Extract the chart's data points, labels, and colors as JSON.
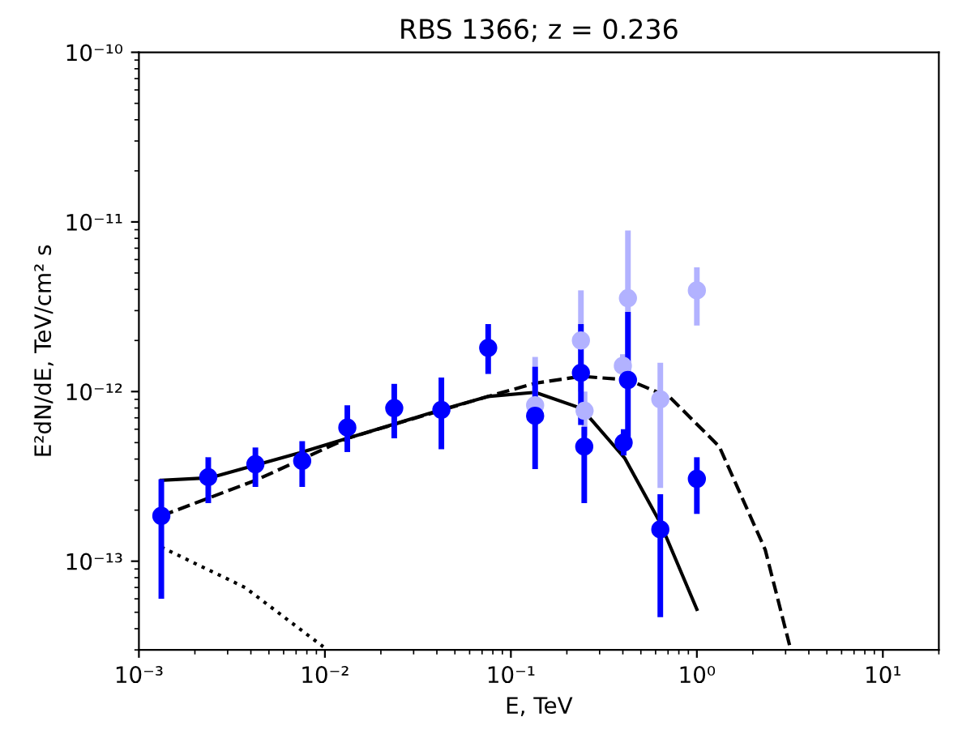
{
  "chart_data": {
    "type": "scatter",
    "title": "RBS 1366; z = 0.236",
    "xlabel": "E, TeV",
    "ylabel": "E²dN/dE, TeV/cm² s",
    "log": "xy",
    "xlim": [
      0.001,
      20
    ],
    "ylim": [
      3e-14,
      1e-10
    ],
    "xticks": [
      {
        "value": 0.001,
        "label": "10⁻³"
      },
      {
        "value": 0.01,
        "label": "10⁻²"
      },
      {
        "value": 0.1,
        "label": "10⁻¹"
      },
      {
        "value": 1,
        "label": "10⁰"
      },
      {
        "value": 10,
        "label": "10¹"
      }
    ],
    "yticks": [
      {
        "value": 1e-13,
        "label": "10⁻¹³"
      },
      {
        "value": 1e-12,
        "label": "10⁻¹²"
      },
      {
        "value": 1e-11,
        "label": "10⁻¹¹"
      },
      {
        "value": 1e-10,
        "label": "10⁻¹⁰"
      }
    ],
    "grid": false,
    "series": [
      {
        "type": "line",
        "color": "#000000",
        "line_style": "solid",
        "marker": "none",
        "x": [
          0.00132,
          0.00241,
          0.0073,
          0.0132,
          0.042,
          0.075,
          0.135,
          0.24,
          0.41,
          0.636,
          1.0
        ],
        "values": [
          3e-13,
          3.1e-13,
          4.35e-13,
          5.3e-13,
          7.8e-13,
          9.35e-13,
          9.9e-13,
          7.95e-13,
          4.04e-13,
          1.68e-13,
          5.2e-14
        ]
      },
      {
        "type": "line",
        "color": "#000000",
        "line_style": "dashed",
        "marker": "none",
        "x": [
          0.00132,
          0.00425,
          0.0132,
          0.075,
          0.135,
          0.24,
          0.43,
          0.72,
          1.32,
          2.33,
          3.15
        ],
        "values": [
          1.85e-13,
          3e-13,
          5.3e-13,
          9.35e-13,
          1.12e-12,
          1.23e-12,
          1.17e-12,
          9.2e-13,
          4.74e-13,
          1.17e-13,
          3.2e-14
        ]
      },
      {
        "type": "line",
        "color": "#000000",
        "line_style": "dotted",
        "marker": "none",
        "x": [
          0.00132,
          0.00372,
          0.0098
        ],
        "values": [
          1.21e-13,
          7e-14,
          3.13e-14
        ]
      },
      {
        "color": "#b2b2ff",
        "marker": "circle",
        "x": [
          0.135,
          0.238,
          0.249,
          0.4,
          0.426,
          0.636,
          1.0
        ],
        "values": [
          8.3e-13,
          2e-12,
          7.7e-13,
          1.42e-12,
          3.55e-12,
          9e-13,
          3.95e-12
        ],
        "errors": [
          [
            6.3e-13,
            1.6e-12
          ],
          [
            1e-12,
            3.95e-12
          ],
          [
            5.5e-13,
            1e-12
          ],
          [
            1.21e-12,
            1.66e-12
          ],
          [
            1.4e-12,
            8.9e-12
          ],
          [
            2.7e-13,
            1.48e-12
          ],
          [
            2.45e-12,
            5.4e-12
          ]
        ]
      },
      {
        "color": "#0000ff",
        "marker": "circle",
        "x": [
          0.00132,
          0.00236,
          0.00423,
          0.00755,
          0.0132,
          0.0236,
          0.0423,
          0.0755,
          0.135,
          0.238,
          0.248,
          0.426,
          0.404,
          0.636,
          1.0
        ],
        "values": [
          1.85e-13,
          3.13e-13,
          3.73e-13,
          3.9e-13,
          6.14e-13,
          7.98e-13,
          7.8e-13,
          1.81e-12,
          7.2e-13,
          1.29e-12,
          4.74e-13,
          1.17e-12,
          5e-13,
          1.54e-13,
          3.06e-13
        ],
        "errors": [
          [
            6e-14,
            3.04e-13
          ],
          [
            2.2e-13,
            4.1e-13
          ],
          [
            2.74e-13,
            4.68e-13
          ],
          [
            2.74e-13,
            5.1e-13
          ],
          [
            4.4e-13,
            8.3e-13
          ],
          [
            5.3e-13,
            1.11e-12
          ],
          [
            4.57e-13,
            1.21e-12
          ],
          [
            1.27e-12,
            2.5e-12
          ],
          [
            3.49e-13,
            1.4e-12
          ],
          [
            6.35e-13,
            2.5e-12
          ],
          [
            2.2e-13,
            6.2e-13
          ],
          [
            5.4e-13,
            2.95e-12
          ],
          [
            4.2e-13,
            6e-13
          ],
          [
            4.68e-14,
            2.48e-13
          ],
          [
            1.9e-13,
            4.1e-13
          ]
        ]
      }
    ]
  }
}
